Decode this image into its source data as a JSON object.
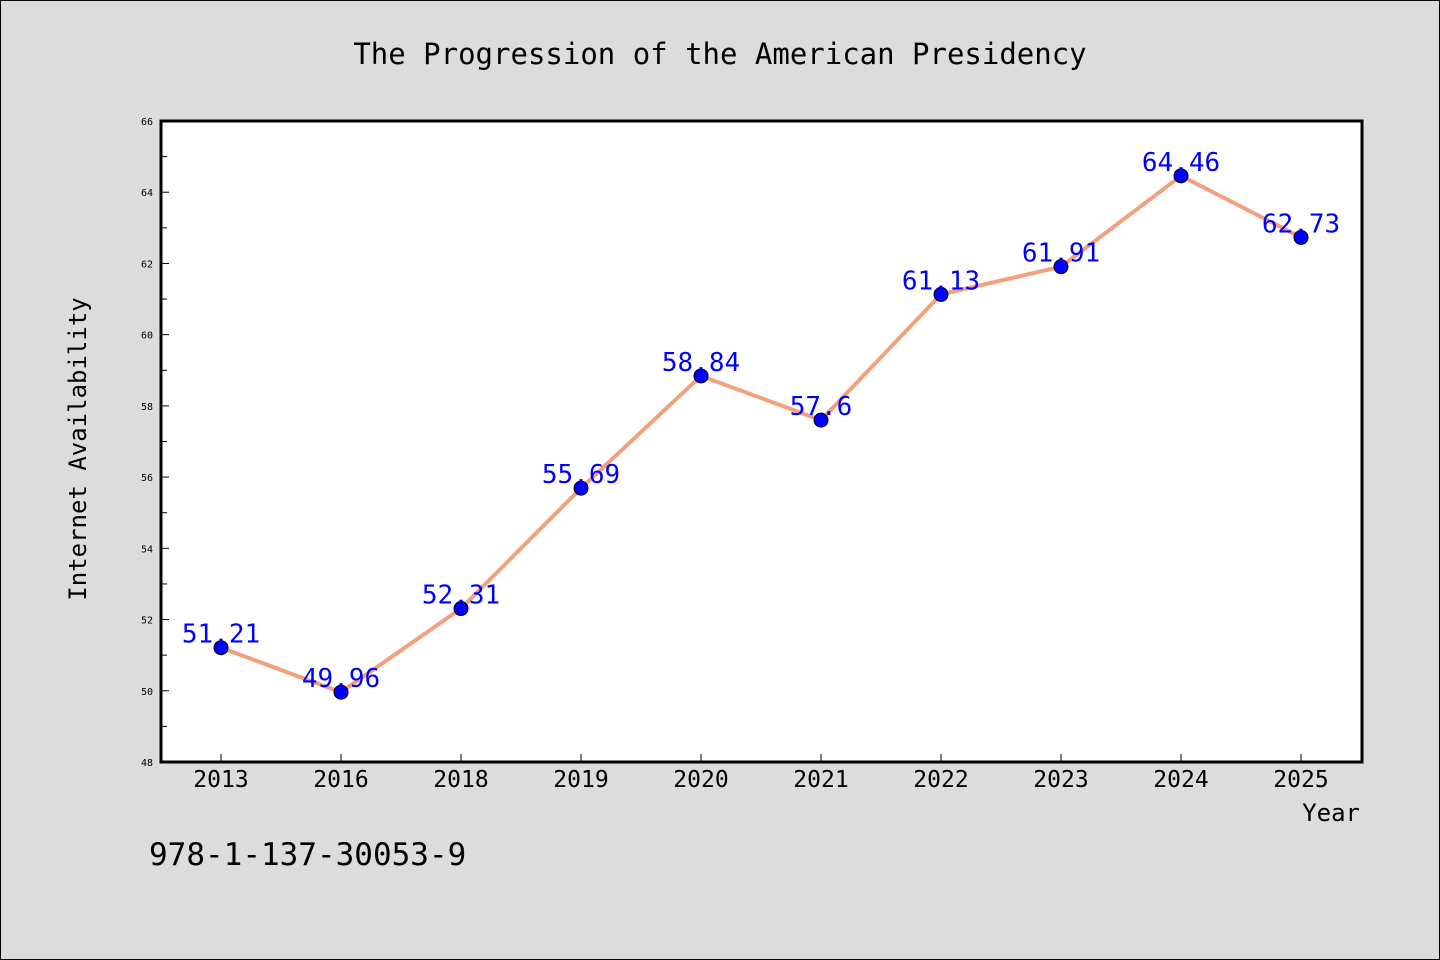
{
  "chart_data": {
    "type": "line",
    "title": "The Progression of the American Presidency",
    "xlabel": "Year",
    "ylabel": "Internet Availability",
    "categories": [
      "2013",
      "2016",
      "2018",
      "2019",
      "2020",
      "2021",
      "2022",
      "2023",
      "2024",
      "2025"
    ],
    "series": [
      {
        "values": [
          51.21,
          49.96,
          52.31,
          55.69,
          58.84,
          57.6,
          61.13,
          61.91,
          64.46,
          62.73
        ],
        "labels": [
          "51.21",
          "49.96",
          "52.31",
          "55.69",
          "58.84",
          "57.6",
          "61.13",
          "61.91",
          "64.46",
          "62.73"
        ],
        "line_color": "#f4a07e",
        "marker_color": "#0000ff"
      }
    ],
    "ylim": [
      48,
      66
    ],
    "yticks": [
      "48",
      "50",
      "52",
      "54",
      "56",
      "58",
      "60",
      "62",
      "64",
      "66"
    ],
    "grid": false,
    "legend": "none",
    "label_color": "#0000ff",
    "background": "#dcdcdc"
  },
  "footer": {
    "isbn": "978-1-137-30053-9"
  }
}
